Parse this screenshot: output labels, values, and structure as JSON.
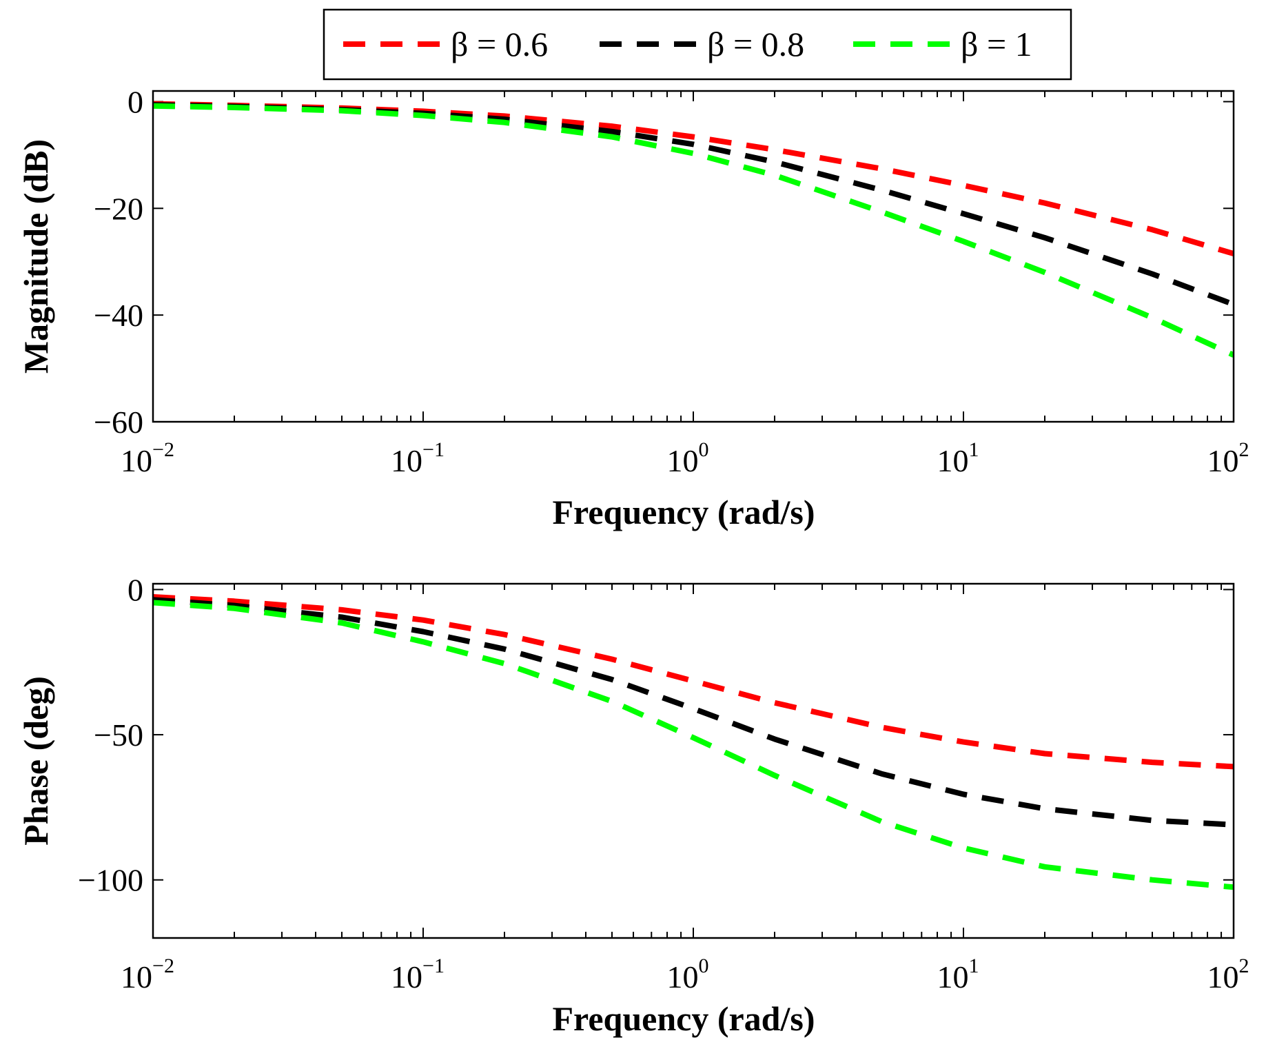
{
  "chart_data": [
    {
      "type": "line",
      "title": "",
      "xlabel": "Frequency (rad/s)",
      "ylabel": "Magnitude (dB)",
      "xscale": "log",
      "xlim": [
        0.01,
        100
      ],
      "ylim": [
        -60,
        2
      ],
      "xticks": [
        {
          "base": "10",
          "exp": "−2",
          "value": 0.01
        },
        {
          "base": "10",
          "exp": "−1",
          "value": 0.1
        },
        {
          "base": "10",
          "exp": "0",
          "value": 1
        },
        {
          "base": "10",
          "exp": "1",
          "value": 10
        },
        {
          "base": "10",
          "exp": "2",
          "value": 100
        }
      ],
      "yticks": [
        {
          "label": "0",
          "value": 0
        },
        {
          "label": "−20",
          "value": -20
        },
        {
          "label": "−40",
          "value": -40
        },
        {
          "label": "−60",
          "value": -60
        }
      ],
      "x": [
        0.01,
        0.02,
        0.05,
        0.1,
        0.2,
        0.5,
        1,
        2,
        5,
        10,
        20,
        50,
        100
      ],
      "series": [
        {
          "name": "β = 0.6",
          "color": "#ff0000",
          "values": [
            -0.4,
            -0.7,
            -1.2,
            -1.8,
            -2.7,
            -4.6,
            -6.6,
            -9.0,
            -12.6,
            -15.7,
            -19.0,
            -24.0,
            -28.5
          ]
        },
        {
          "name": "β = 0.8",
          "color": "#000000",
          "values": [
            -0.6,
            -0.9,
            -1.5,
            -2.2,
            -3.3,
            -5.6,
            -8.0,
            -11.3,
            -16.6,
            -21.0,
            -25.5,
            -32.3,
            -38.0
          ]
        },
        {
          "name": "β = 1",
          "color": "#00ff00",
          "values": [
            -0.8,
            -1.1,
            -1.7,
            -2.6,
            -3.9,
            -6.6,
            -9.7,
            -13.8,
            -20.7,
            -26.2,
            -32.0,
            -40.5,
            -47.5
          ]
        }
      ]
    },
    {
      "type": "line",
      "title": "",
      "xlabel": "Frequency (rad/s)",
      "ylabel": "Phase (deg)",
      "xscale": "log",
      "xlim": [
        0.01,
        100
      ],
      "ylim": [
        -120,
        2
      ],
      "xticks": [
        {
          "base": "10",
          "exp": "−2",
          "value": 0.01
        },
        {
          "base": "10",
          "exp": "−1",
          "value": 0.1
        },
        {
          "base": "10",
          "exp": "0",
          "value": 1
        },
        {
          "base": "10",
          "exp": "1",
          "value": 10
        },
        {
          "base": "10",
          "exp": "2",
          "value": 100
        }
      ],
      "yticks": [
        {
          "label": "0",
          "value": 0
        },
        {
          "label": "−50",
          "value": -50
        },
        {
          "label": "−100",
          "value": -100
        }
      ],
      "x": [
        0.01,
        0.02,
        0.05,
        0.1,
        0.2,
        0.5,
        1,
        2,
        5,
        10,
        20,
        50,
        100
      ],
      "series": [
        {
          "name": "β = 0.6",
          "color": "#ff0000",
          "values": [
            -2.5,
            -4.0,
            -7.0,
            -10.5,
            -15.5,
            -24.0,
            -31.5,
            -39.0,
            -47.5,
            -52.5,
            -56.5,
            -59.5,
            -61.0
          ]
        },
        {
          "name": "β = 0.8",
          "color": "#000000",
          "values": [
            -3.5,
            -5.5,
            -9.5,
            -14.5,
            -20.5,
            -31.0,
            -41.0,
            -51.5,
            -63.5,
            -70.5,
            -75.5,
            -79.5,
            -81.0
          ]
        },
        {
          "name": "β = 1",
          "color": "#00ff00",
          "values": [
            -4.5,
            -6.5,
            -11.5,
            -18.0,
            -25.5,
            -38.5,
            -51.0,
            -64.0,
            -80.0,
            -89.0,
            -95.5,
            -100.0,
            -102.5
          ]
        }
      ]
    }
  ],
  "legend": {
    "placement": "top-center",
    "entries": [
      "β = 0.6",
      "β = 0.8",
      "β = 1"
    ]
  }
}
